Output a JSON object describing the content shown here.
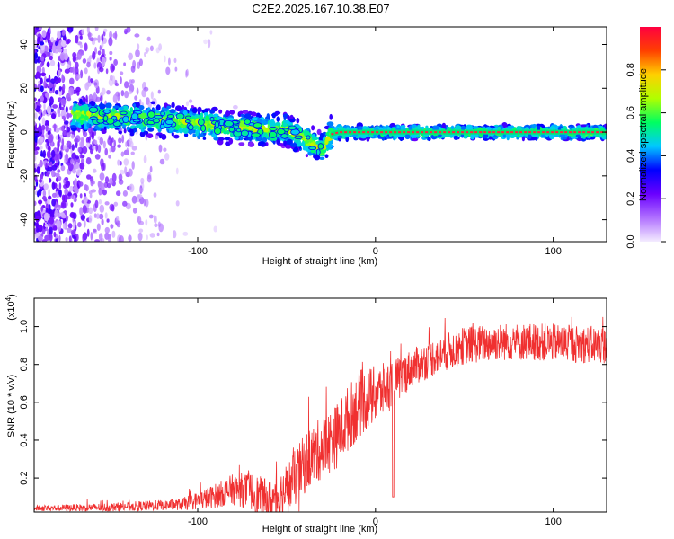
{
  "title": "C2E2.2025.167.10.38.E07",
  "chart_data": [
    {
      "type": "heatmap",
      "xlabel": "Height of straight line (km)",
      "ylabel": "Frequency (Hz)",
      "xlim": [
        -192,
        130
      ],
      "ylim": [
        -50,
        48
      ],
      "x_ticks": [
        -100,
        0,
        100
      ],
      "x_tick_labels": [
        "-100",
        "0",
        "100"
      ],
      "y_ticks": [
        -40,
        -20,
        0,
        20,
        40
      ],
      "y_tick_labels": [
        "-40",
        "-20",
        "0",
        "20",
        "40"
      ],
      "colorbar": {
        "label": "Normalized spectral amplitude",
        "range": [
          0,
          1
        ],
        "ticks": [
          0.0,
          0.2,
          0.4,
          0.6,
          0.8
        ],
        "tick_labels": [
          "0.0",
          "0.2",
          "0.4",
          "0.6",
          "0.8"
        ],
        "colors": [
          "#f4ecff",
          "#b070ff",
          "#6a00ff",
          "#0000ff",
          "#00c8ff",
          "#00ff60",
          "#b0ff00",
          "#ffd000",
          "#ff4000",
          "#ff0040"
        ]
      },
      "ridge": {
        "x": [
          -165,
          -150,
          -130,
          -110,
          -90,
          -75,
          -60,
          -50,
          -42,
          -36,
          -30,
          -25,
          -20,
          0,
          50,
          100,
          130
        ],
        "y": [
          8,
          7,
          6,
          5,
          3,
          2,
          1,
          1,
          -2,
          -5,
          -8,
          -1,
          0,
          0,
          0,
          0,
          0
        ]
      },
      "grid": false
    },
    {
      "type": "line",
      "xlabel": "Height of straight line (km)",
      "ylabel": "SNR (10 * v/v)",
      "y_multiplier": "(x10",
      "y_multiplier_exp": "4",
      "y_multiplier_close": ")",
      "xlim": [
        -192,
        130
      ],
      "ylim": [
        0.02,
        1.15
      ],
      "x_ticks": [
        -100,
        0,
        100
      ],
      "x_tick_labels": [
        "-100",
        "0",
        "100"
      ],
      "y_ticks": [
        0.2,
        0.4,
        0.6,
        0.8,
        1.0
      ],
      "y_tick_labels": [
        "0.2",
        "0.4",
        "0.6",
        "0.8",
        "1.0"
      ],
      "series": [
        {
          "color": "#f03030",
          "trend_x": [
            -192,
            -150,
            -110,
            -95,
            -80,
            -70,
            -60,
            -52,
            -45,
            -38,
            -30,
            -22,
            -15,
            -8,
            0,
            10,
            20,
            35,
            50,
            70,
            90,
            110,
            130
          ],
          "trend_y": [
            0.04,
            0.045,
            0.06,
            0.09,
            0.14,
            0.13,
            0.07,
            0.12,
            0.2,
            0.3,
            0.36,
            0.42,
            0.52,
            0.6,
            0.64,
            0.7,
            0.78,
            0.85,
            0.9,
            0.92,
            0.92,
            0.91,
            0.9
          ],
          "noise_amp_x": [
            -192,
            -110,
            -70,
            -40,
            -10,
            20,
            130
          ],
          "noise_amp_y": [
            0.015,
            0.03,
            0.1,
            0.16,
            0.18,
            0.1,
            0.1
          ]
        }
      ],
      "grid": false
    }
  ]
}
